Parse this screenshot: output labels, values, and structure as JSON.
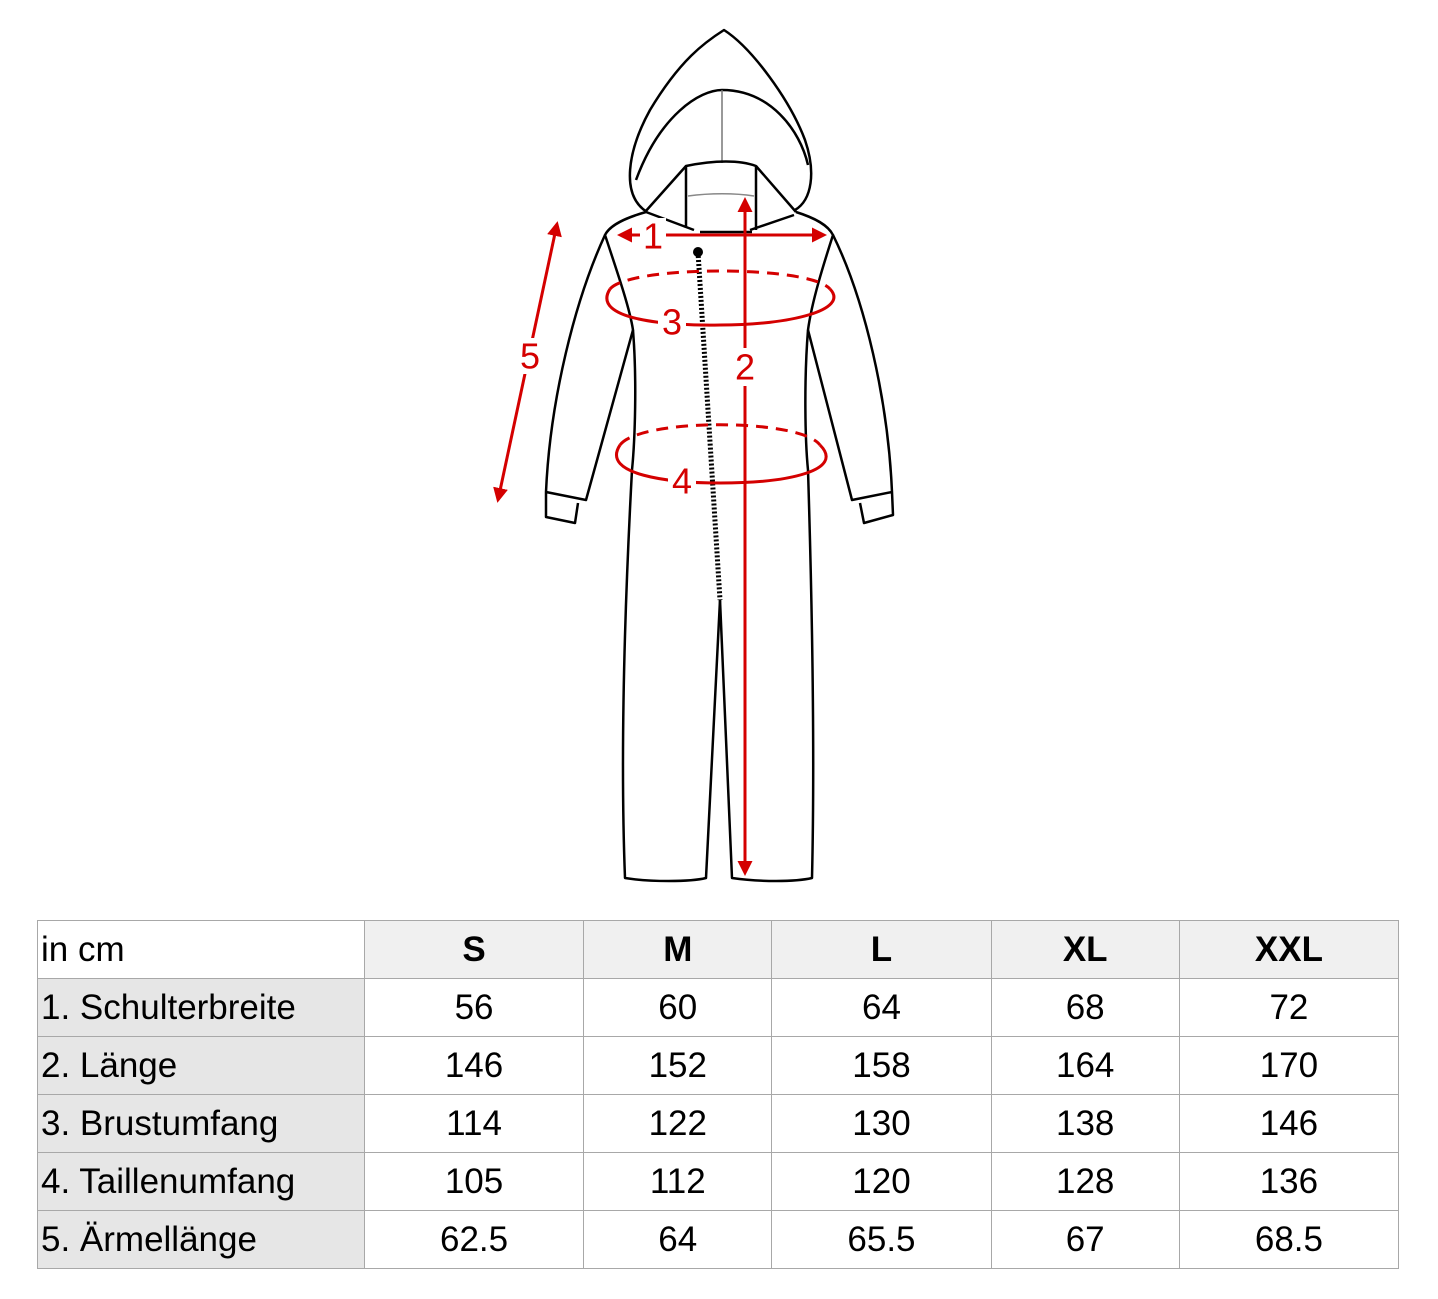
{
  "diagram": {
    "measure_labels": [
      "1",
      "2",
      "3",
      "4",
      "5"
    ],
    "colors": {
      "measure": "#d40000",
      "outline": "#000000"
    }
  },
  "table": {
    "unit_label": "in cm",
    "sizes": [
      "S",
      "M",
      "L",
      "XL",
      "XXL"
    ],
    "rows": [
      {
        "label": "1. Schulterbreite",
        "values": [
          "56",
          "60",
          "64",
          "68",
          "72"
        ]
      },
      {
        "label": "2. Länge",
        "values": [
          "146",
          "152",
          "158",
          "164",
          "170"
        ]
      },
      {
        "label": "3. Brustumfang",
        "values": [
          "114",
          "122",
          "130",
          "138",
          "146"
        ]
      },
      {
        "label": "4. Taillenumfang",
        "values": [
          "105",
          "112",
          "120",
          "128",
          "136"
        ]
      },
      {
        "label": "5. Ärmellänge",
        "values": [
          "62.5",
          "64",
          "65.5",
          "67",
          "68.5"
        ]
      }
    ]
  }
}
